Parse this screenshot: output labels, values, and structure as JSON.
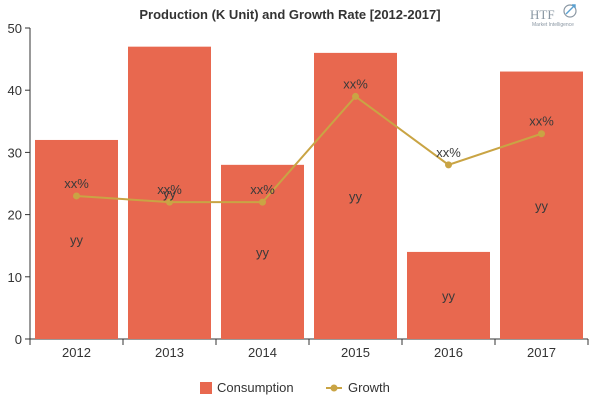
{
  "chart_data": {
    "type": "bar",
    "title": "Production (K Unit) and Growth Rate [2012-2017]",
    "categories": [
      "2012",
      "2013",
      "2014",
      "2015",
      "2016",
      "2017"
    ],
    "ylim": [
      0,
      50
    ],
    "yticks": [
      "0",
      "10",
      "20",
      "30",
      "40",
      "50"
    ],
    "grid": false,
    "legend_position": "bottom",
    "series": [
      {
        "name": "Consumption",
        "type": "bar",
        "color": "#e8684f",
        "values": [
          32,
          47,
          28,
          46,
          14,
          43
        ],
        "data_label": "yy"
      },
      {
        "name": "Growth",
        "type": "line",
        "color": "#c9a444",
        "values": [
          23,
          22,
          22,
          39,
          28,
          33
        ],
        "data_label": "xx%"
      }
    ]
  },
  "logo": {
    "text": "HTF",
    "subtext": "Market Intelligence",
    "icon": "globe-arrow-icon"
  }
}
